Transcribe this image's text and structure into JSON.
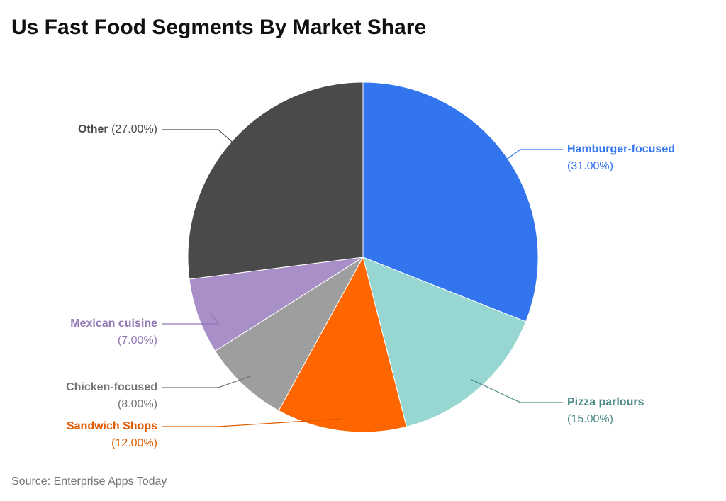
{
  "chart_data": {
    "type": "pie",
    "title": "Us Fast Food Segments By Market Share",
    "categories": [
      "Hamburger-focused",
      "Pizza parlours",
      "Sandwich Shops",
      "Chicken-focused",
      "Mexican cuisine",
      "Other"
    ],
    "values": [
      31,
      15,
      12,
      8,
      7,
      27
    ],
    "value_labels": [
      "(31.00%)",
      "(15.00%)",
      "(12.00%)",
      "(8.00%)",
      "(7.00%)",
      "(27.00%)"
    ],
    "colors": [
      "#3375ee",
      "#98d7d1",
      "#ff6600",
      "#9e9e9e",
      "#a98fc8",
      "#4a4a4a"
    ],
    "label_colors": [
      "#3375ee",
      "#4a8a85",
      "#e05a00",
      "#757575",
      "#9278b5",
      "#4a4a4a"
    ],
    "source": "Source: Enterprise Apps Today"
  }
}
